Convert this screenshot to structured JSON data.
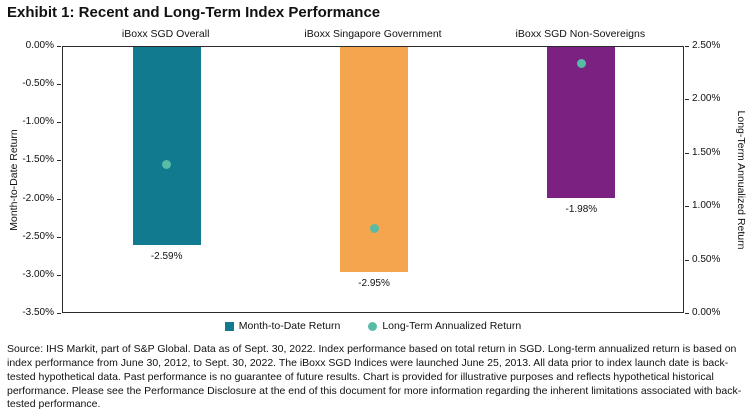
{
  "title": "Exhibit 1: Recent and Long-Term Index Performance",
  "chart_data": {
    "type": "bar",
    "categories": [
      "iBoxx SGD Overall",
      "iBoxx Singapore Government",
      "iBoxx SGD Non-Sovereigns"
    ],
    "series": [
      {
        "name": "Month-to-Date Return",
        "type": "bar",
        "values": [
          -2.59,
          -2.95,
          -1.98
        ],
        "labels": [
          "-2.59%",
          "-2.95%",
          "-1.98%"
        ],
        "colors": [
          "#117a8f",
          "#f5a54e",
          "#7a2182"
        ]
      },
      {
        "name": "Long-Term Annualized Return",
        "type": "point",
        "values": [
          1.4,
          0.8,
          2.35
        ],
        "color": "#58bba6"
      }
    ],
    "left_axis": {
      "label": "Month-to-Date Return",
      "max": 0,
      "min": -3.5,
      "ticks": [
        "0.00%",
        "-0.50%",
        "-1.00%",
        "-1.50%",
        "-2.00%",
        "-2.50%",
        "-3.00%",
        "-3.50%"
      ]
    },
    "right_axis": {
      "label": "Long-Term Annualized Return",
      "max": 2.5,
      "min": 0,
      "ticks": [
        "2.50%",
        "2.00%",
        "1.50%",
        "1.00%",
        "0.50%",
        "0.00%"
      ]
    },
    "legend": [
      {
        "label": "Month-to-Date Return",
        "swatch": "square",
        "color": "#117a8f"
      },
      {
        "label": "Long-Term Annualized Return",
        "swatch": "circle",
        "color": "#58bba6"
      }
    ],
    "grid": false,
    "legend_position": "bottom-center"
  },
  "source_note": "Source: IHS Markit, part of S&P Global.  Data as of Sept. 30, 2022.  Index performance based on total return in SGD.  Long-term annualized return is based on index performance from June 30, 2012, to Sept. 30, 2022.  The iBoxx SGD Indices were launched June 25, 2013.  All data prior to index launch date is back-tested hypothetical data.  Past performance is no guarantee of future results.  Chart is provided for illustrative purposes and reflects hypothetical historical performance.  Please see the Performance Disclosure at the end of this document for more information regarding the inherent limitations associated with back-tested performance."
}
